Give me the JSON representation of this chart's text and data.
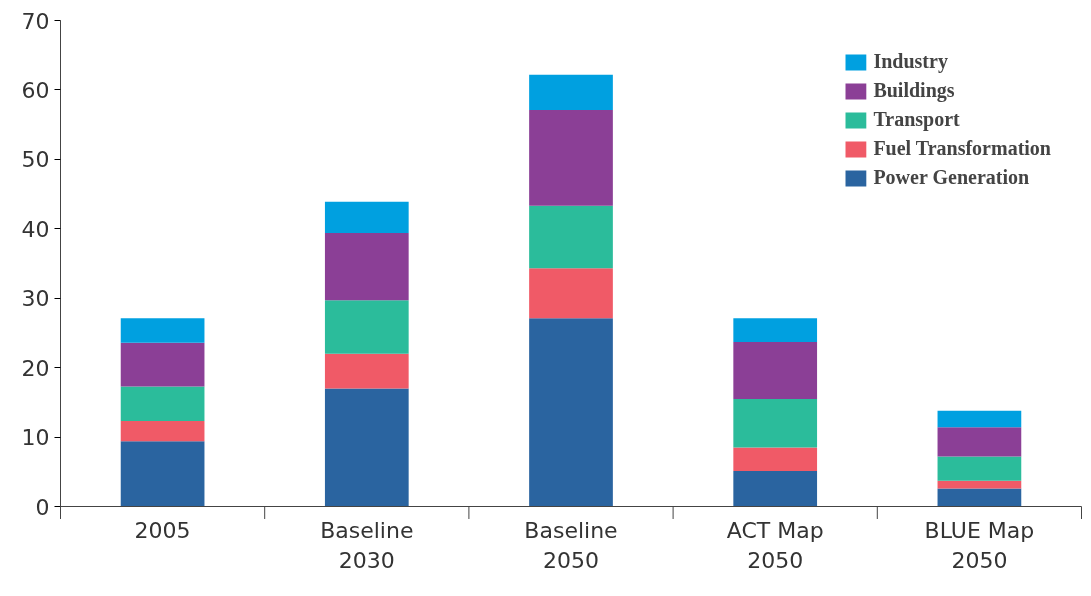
{
  "chart_data": {
    "type": "bar",
    "stacked": true,
    "categories": [
      "2005",
      "Baseline 2030",
      "Baseline 2050",
      "ACT Map 2050",
      "BLUE Map 2050"
    ],
    "series": [
      {
        "name": "Power Generation",
        "color": "#2a64a0",
        "values": [
          9.4,
          17.0,
          27.1,
          5.1,
          2.6
        ]
      },
      {
        "name": "Fuel Transformation",
        "color": "#f05a67",
        "values": [
          2.9,
          5.0,
          7.2,
          3.4,
          1.1
        ]
      },
      {
        "name": "Transport",
        "color": "#2bbc9b",
        "values": [
          5.0,
          7.7,
          9.0,
          7.0,
          3.5
        ]
      },
      {
        "name": "Buildings",
        "color": "#8b3f96",
        "values": [
          6.3,
          9.7,
          13.8,
          8.2,
          4.2
        ]
      },
      {
        "name": "Industry",
        "color": "#00a0e0",
        "values": [
          3.5,
          4.5,
          5.1,
          3.4,
          2.4
        ]
      }
    ],
    "ylim": [
      0,
      70
    ],
    "yticks": [
      0,
      10,
      20,
      30,
      40,
      50,
      60,
      70
    ],
    "grid": false,
    "legend": "top right"
  }
}
